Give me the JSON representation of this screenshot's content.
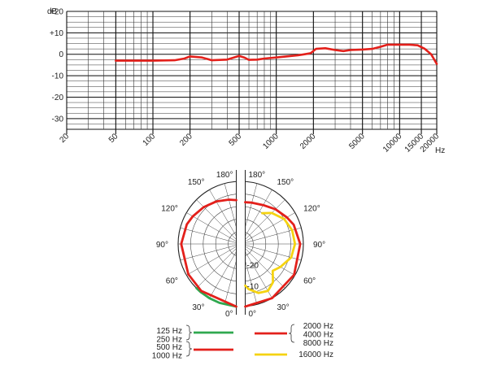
{
  "chart_data": [
    {
      "type": "line",
      "title": "",
      "y_unit_label": "dB",
      "x_unit_label": "Hz",
      "xscale": "log",
      "xlim": [
        20,
        20000
      ],
      "ylim": [
        -35,
        20
      ],
      "y_ticks": [
        {
          "value": 20,
          "label": "+20"
        },
        {
          "value": 10,
          "label": "+10"
        },
        {
          "value": 0,
          "label": "0"
        },
        {
          "value": -10,
          "label": "-10"
        },
        {
          "value": -20,
          "label": "-20"
        },
        {
          "value": -30,
          "label": "-30"
        }
      ],
      "x_ticks": [
        {
          "value": 20,
          "label": "20"
        },
        {
          "value": 50,
          "label": "50"
        },
        {
          "value": 100,
          "label": "100"
        },
        {
          "value": 200,
          "label": "200"
        },
        {
          "value": 500,
          "label": "500"
        },
        {
          "value": 1000,
          "label": "1000"
        },
        {
          "value": 2000,
          "label": "2000"
        },
        {
          "value": 5000,
          "label": "5000"
        },
        {
          "value": 10000,
          "label": "10000"
        },
        {
          "value": 15000,
          "label": "15000"
        },
        {
          "value": 20000,
          "label": "20000"
        }
      ],
      "grid": true,
      "series": [
        {
          "color": "#e3201b",
          "x": [
            50,
            70,
            100,
            150,
            180,
            200,
            250,
            300,
            400,
            450,
            500,
            550,
            600,
            700,
            800,
            1000,
            1200,
            1500,
            1700,
            1900,
            2100,
            2500,
            3000,
            3500,
            4000,
            5000,
            6000,
            7000,
            8000,
            10000,
            12000,
            14000,
            16000,
            18000,
            20000
          ],
          "y": [
            -3,
            -3,
            -3,
            -2.8,
            -2,
            -1,
            -1.5,
            -2.8,
            -2.5,
            -1.6,
            -0.8,
            -1.5,
            -2.6,
            -2.5,
            -2,
            -1.5,
            -1,
            -0.5,
            0,
            0.5,
            2.5,
            2.8,
            2,
            1.5,
            2,
            2.2,
            2.5,
            3.5,
            4.5,
            4.5,
            4.5,
            4.2,
            2.5,
            0,
            -4.5
          ]
        }
      ]
    },
    {
      "type": "polar",
      "title": "",
      "angle_labels": [
        "0°",
        "30°",
        "60°",
        "90°",
        "120°",
        "150°",
        "180°"
      ],
      "radial_ticks": [
        {
          "value": -10,
          "label": "-10"
        },
        {
          "value": -20,
          "label": "-20"
        }
      ],
      "rlim": [
        -30,
        0
      ],
      "series": [
        {
          "name": "125 Hz\n250 Hz",
          "color": "#2fa84f",
          "side": "left",
          "angles": [
            0,
            20,
            30,
            40,
            45
          ],
          "levels": [
            0,
            0,
            0,
            0,
            0
          ]
        },
        {
          "name": "500 Hz\n1000 Hz",
          "color": "#e3201b",
          "side": "left",
          "angles": [
            0,
            40,
            60,
            90,
            110,
            120,
            135,
            150,
            165,
            180
          ],
          "levels": [
            0,
            -0.6,
            -1,
            -1.5,
            -2.5,
            -3.5,
            -5,
            -6.5,
            -8,
            -9
          ]
        },
        {
          "name": "2000 Hz\n4000 Hz\n8000 Hz",
          "color": "#e3201b",
          "side": "right",
          "angles": [
            0,
            30,
            60,
            90,
            110,
            120,
            135,
            150,
            165,
            180
          ],
          "levels": [
            0,
            0,
            -0.5,
            -1.5,
            -3,
            -4.5,
            -6.5,
            -8.5,
            -9.5,
            -10
          ]
        },
        {
          "name": "16000 Hz",
          "color": "#f5d312",
          "side": "right",
          "angles": [
            0,
            10,
            20,
            30,
            40,
            50,
            60,
            75,
            90,
            105,
            120,
            135,
            145
          ],
          "levels": [
            -10,
            -8,
            -5,
            -4,
            -6,
            -10,
            -8,
            -5,
            -4,
            -4.5,
            -6,
            -9,
            -12
          ]
        }
      ]
    }
  ],
  "legend": {
    "left": {
      "green_labels": [
        "125 Hz",
        "250 Hz"
      ],
      "red_labels": [
        "500 Hz",
        "1000 Hz"
      ]
    },
    "right": {
      "red_labels": [
        "2000 Hz",
        "4000 Hz",
        "8000 Hz"
      ],
      "yellow_labels": [
        "16000 Hz"
      ]
    }
  }
}
